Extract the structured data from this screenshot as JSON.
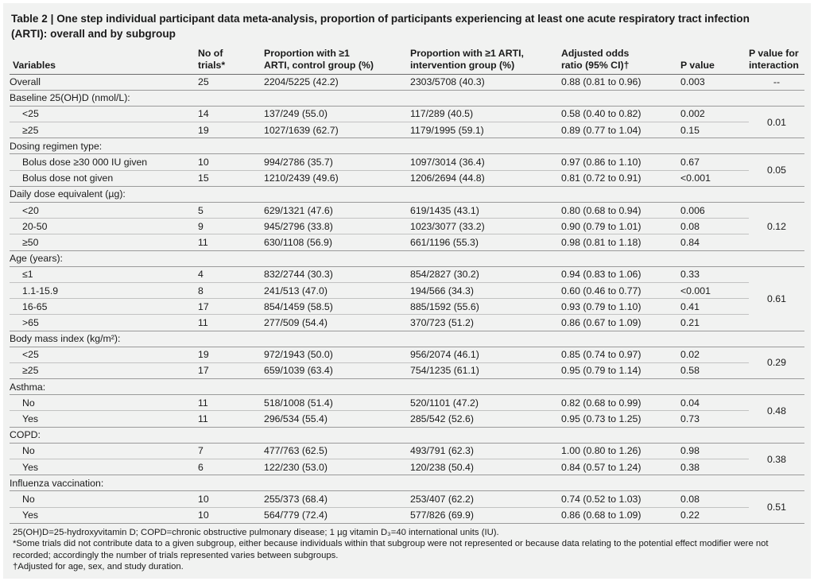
{
  "caption": {
    "line1": "Table 2 | One step individual participant data meta-analysis, proportion of participants experiencing at least one acute respiratory tract infection",
    "line2": "(ARTI): overall and by subgroup"
  },
  "headers": {
    "variables": "Variables",
    "trials_1": "No of",
    "trials_2": "trials*",
    "control_1": "Proportion with ≥1",
    "control_2": "ARTI, control group (%)",
    "intervention_1": "Proportion with ≥1 ARTI,",
    "intervention_2": "intervention group (%)",
    "or_1": "Adjusted odds",
    "or_2": "ratio (95% CI)†",
    "p": "P value",
    "pint_1": "P value for",
    "pint_2": "interaction"
  },
  "overall": {
    "label": "Overall",
    "trials": "25",
    "control": "2204/5225 (42.2)",
    "intervention": "2303/5708 (40.3)",
    "or": "0.88 (0.81 to 0.96)",
    "p": "0.003",
    "p_interaction": "--"
  },
  "groups": [
    {
      "title": "Baseline 25(OH)D (nmol/L):",
      "p_interaction": "0.01",
      "rows": [
        {
          "label": "<25",
          "trials": "14",
          "control": "137/249 (55.0)",
          "intervention": "117/289 (40.5)",
          "or": "0.58 (0.40 to 0.82)",
          "p": "0.002"
        },
        {
          "label": "≥25",
          "trials": "19",
          "control": "1027/1639 (62.7)",
          "intervention": "1179/1995 (59.1)",
          "or": "0.89 (0.77 to 1.04)",
          "p": "0.15"
        }
      ]
    },
    {
      "title": "Dosing regimen type:",
      "p_interaction": "0.05",
      "rows": [
        {
          "label": "Bolus dose ≥30 000 IU given",
          "trials": "10",
          "control": "994/2786 (35.7)",
          "intervention": "1097/3014 (36.4)",
          "or": "0.97 (0.86 to 1.10)",
          "p": "0.67"
        },
        {
          "label": "Bolus dose not given",
          "trials": "15",
          "control": "1210/2439 (49.6)",
          "intervention": "1206/2694 (44.8)",
          "or": "0.81 (0.72 to 0.91)",
          "p": "<0.001"
        }
      ]
    },
    {
      "title": "Daily dose equivalent (µg):",
      "p_interaction": "0.12",
      "rows": [
        {
          "label": "<20",
          "trials": "5",
          "control": "629/1321 (47.6)",
          "intervention": "619/1435 (43.1)",
          "or": "0.80 (0.68 to 0.94)",
          "p": "0.006"
        },
        {
          "label": "20-50",
          "trials": "9",
          "control": "945/2796 (33.8)",
          "intervention": "1023/3077 (33.2)",
          "or": "0.90 (0.79 to 1.01)",
          "p": "0.08"
        },
        {
          "label": "≥50",
          "trials": "11",
          "control": "630/1108 (56.9)",
          "intervention": "661/1196 (55.3)",
          "or": "0.98 (0.81 to 1.18)",
          "p": "0.84"
        }
      ]
    },
    {
      "title": "Age (years):",
      "p_interaction": "0.61",
      "rows": [
        {
          "label": "≤1",
          "trials": "4",
          "control": "832/2744 (30.3)",
          "intervention": "854/2827 (30.2)",
          "or": "0.94 (0.83 to 1.06)",
          "p": "0.33"
        },
        {
          "label": "1.1-15.9",
          "trials": "8",
          "control": "241/513 (47.0)",
          "intervention": "194/566 (34.3)",
          "or": "0.60 (0.46 to 0.77)",
          "p": "<0.001"
        },
        {
          "label": "16-65",
          "trials": "17",
          "control": "854/1459 (58.5)",
          "intervention": "885/1592 (55.6)",
          "or": "0.93 (0.79 to 1.10)",
          "p": "0.41"
        },
        {
          "label": ">65",
          "trials": "11",
          "control": "277/509 (54.4)",
          "intervention": "370/723 (51.2)",
          "or": "0.86 (0.67 to 1.09)",
          "p": "0.21"
        }
      ]
    },
    {
      "title": "Body mass index (kg/m²):",
      "p_interaction": "0.29",
      "rows": [
        {
          "label": "<25",
          "trials": "19",
          "control": "972/1943 (50.0)",
          "intervention": "956/2074 (46.1)",
          "or": "0.85 (0.74 to 0.97)",
          "p": "0.02"
        },
        {
          "label": "≥25",
          "trials": "17",
          "control": "659/1039 (63.4)",
          "intervention": "754/1235 (61.1)",
          "or": "0.95 (0.79 to 1.14)",
          "p": "0.58"
        }
      ]
    },
    {
      "title": "Asthma:",
      "p_interaction": "0.48",
      "rows": [
        {
          "label": "No",
          "trials": "11",
          "control": "518/1008 (51.4)",
          "intervention": "520/1101 (47.2)",
          "or": "0.82 (0.68 to 0.99)",
          "p": "0.04"
        },
        {
          "label": "Yes",
          "trials": "11",
          "control": "296/534 (55.4)",
          "intervention": "285/542 (52.6)",
          "or": "0.95 (0.73 to 1.25)",
          "p": "0.73"
        }
      ]
    },
    {
      "title": "COPD:",
      "p_interaction": "0.38",
      "rows": [
        {
          "label": "No",
          "trials": "7",
          "control": "477/763 (62.5)",
          "intervention": "493/791 (62.3)",
          "or": "1.00 (0.80 to 1.26)",
          "p": "0.98"
        },
        {
          "label": "Yes",
          "trials": "6",
          "control": "122/230 (53.0)",
          "intervention": "120/238 (50.4)",
          "or": "0.84 (0.57 to 1.24)",
          "p": "0.38"
        }
      ]
    },
    {
      "title": "Influenza vaccination:",
      "p_interaction": "0.51",
      "rows": [
        {
          "label": "No",
          "trials": "10",
          "control": "255/373 (68.4)",
          "intervention": "253/407 (62.2)",
          "or": "0.74 (0.52 to 1.03)",
          "p": "0.08"
        },
        {
          "label": "Yes",
          "trials": "10",
          "control": "564/779 (72.4)",
          "intervention": "577/826 (69.9)",
          "or": "0.86 (0.68 to 1.09)",
          "p": "0.22"
        }
      ]
    }
  ],
  "footnotes": [
    "25(OH)D=25-hydroxyvitamin D; COPD=chronic obstructive pulmonary disease; 1 µg vitamin D₃=40 international units (IU).",
    "*Some trials did not contribute data to a given subgroup, either because individuals within that subgroup were not represented or because data relating to the potential effect modifier were not recorded; accordingly the number of trials represented varies between subgroups.",
    "†Adjusted for age, sex, and study duration."
  ]
}
